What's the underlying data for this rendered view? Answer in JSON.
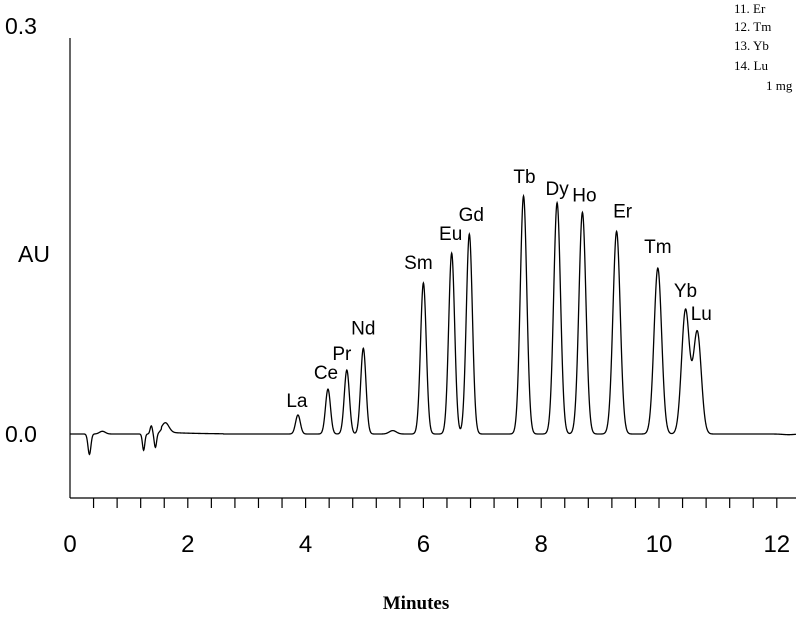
{
  "chart_data": {
    "type": "line",
    "ylabel": "AU",
    "xlabel": "Minutes",
    "xlim": [
      0,
      12.3
    ],
    "ylim": [
      -0.03,
      0.3
    ],
    "y_tick_labels": [
      "0.3",
      "0.0"
    ],
    "y_tick_values": [
      0.3,
      0.0
    ],
    "x_tick_labels": [
      "0",
      "2",
      "4",
      "6",
      "8",
      "10",
      "12"
    ],
    "x_tick_values": [
      0,
      2,
      4,
      6,
      8,
      10,
      12
    ],
    "x_minor_step": 0.4,
    "grid": false,
    "baseline": 0.0,
    "peaks": [
      {
        "label": "La",
        "time": 3.87,
        "height": 0.014
      },
      {
        "label": "Ce",
        "time": 4.38,
        "height": 0.033
      },
      {
        "label": "Pr",
        "time": 4.7,
        "height": 0.047
      },
      {
        "label": "Nd",
        "time": 4.98,
        "height": 0.063
      },
      {
        "label": "Sm",
        "time": 6.0,
        "height": 0.111
      },
      {
        "label": "Eu",
        "time": 6.48,
        "height": 0.133
      },
      {
        "label": "Gd",
        "time": 6.78,
        "height": 0.147
      },
      {
        "label": "Tb",
        "time": 7.7,
        "height": 0.175
      },
      {
        "label": "Dy",
        "time": 8.27,
        "height": 0.17
      },
      {
        "label": "Ho",
        "time": 8.7,
        "height": 0.163
      },
      {
        "label": "Er",
        "time": 9.28,
        "height": 0.149
      },
      {
        "label": "Tm",
        "time": 9.98,
        "height": 0.122
      },
      {
        "label": "Yb",
        "time": 10.45,
        "height": 0.091
      },
      {
        "label": "Lu",
        "time": 10.65,
        "height": 0.075
      }
    ],
    "legend_entries": [
      "11.  Er",
      "12.  Tm",
      "13.  Yb",
      "14.  Lu",
      "1 mg"
    ]
  }
}
